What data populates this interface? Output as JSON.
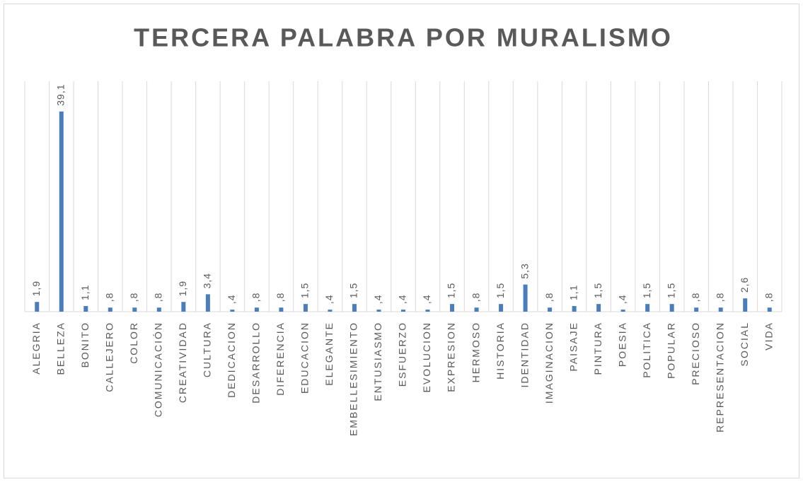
{
  "chart_data": {
    "type": "bar",
    "title": "TERCERA PALABRA POR MURALISMO",
    "categories": [
      "ALEGRIA",
      "BELLEZA",
      "BONITO",
      "CALLEJERO",
      "COLOR",
      "COMUNICACIÓN",
      "CREATIVIDAD",
      "CULTURA",
      "DEDICACION",
      "DESARROLLO",
      "DIFERENCIA",
      "EDUCACION",
      "ELEGANTE",
      "EMBELLESIMIENTO",
      "ENTUSIASMO",
      "ESFUERZO",
      "EVOLUCION",
      "EXPRESION",
      "HERMOSO",
      "HISTORIA",
      "IDENTIDAD",
      "IMAGINACION",
      "PAISAJE",
      "PINTURA",
      "POESIA",
      "POLITICA",
      "POPULAR",
      "PRECIOSO",
      "REPRESENTACION",
      "SOCIAL",
      "VIDA"
    ],
    "values": [
      1.9,
      39.1,
      1.1,
      0.8,
      0.8,
      0.8,
      1.9,
      3.4,
      0.4,
      0.8,
      0.8,
      1.5,
      0.4,
      1.5,
      0.4,
      0.4,
      0.4,
      1.5,
      0.8,
      1.5,
      5.3,
      0.8,
      1.1,
      1.5,
      0.4,
      1.5,
      1.5,
      0.8,
      0.8,
      2.6,
      0.8
    ],
    "value_labels": [
      "1,9",
      "39,1",
      "1,1",
      ",8",
      ",8",
      ",8",
      "1,9",
      "3,4",
      ",4",
      ",8",
      ",8",
      "1,5",
      ",4",
      "1,5",
      ",4",
      ",4",
      ",4",
      "1,5",
      ",8",
      "1,5",
      "5,3",
      ",8",
      "1,1",
      "1,5",
      ",4",
      "1,5",
      "1,5",
      ",8",
      ",8",
      "2,6",
      ",8"
    ],
    "color": "#4a7ebb",
    "ylim": [
      0,
      45
    ]
  }
}
